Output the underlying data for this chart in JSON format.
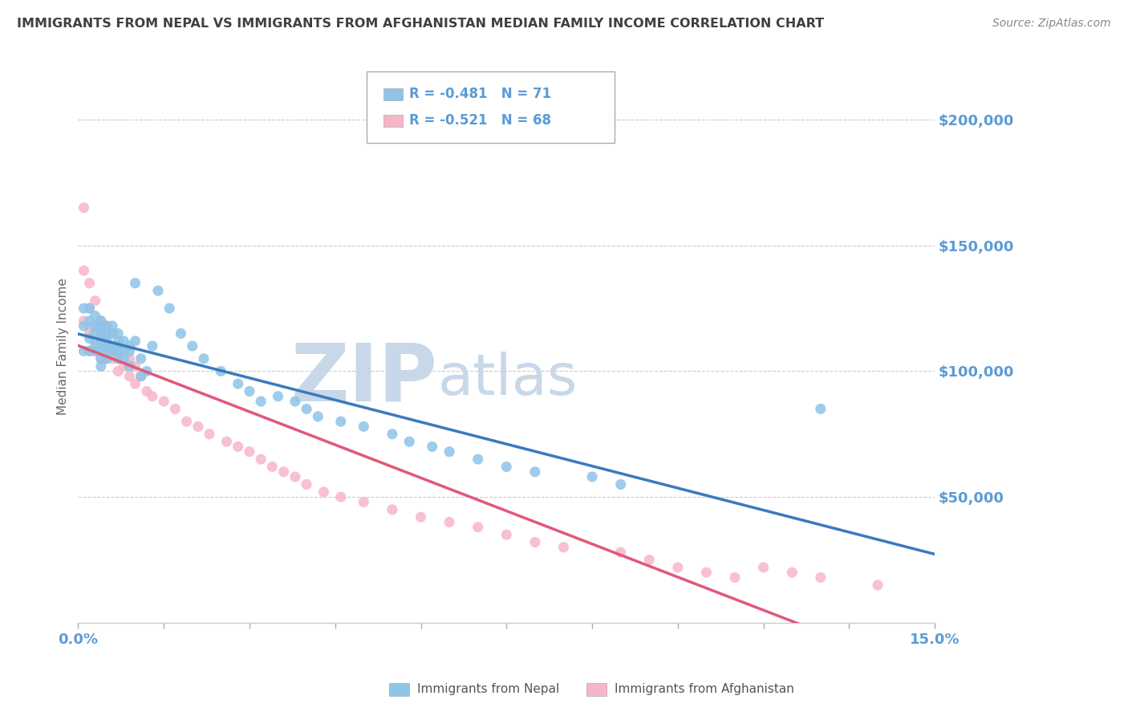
{
  "title": "IMMIGRANTS FROM NEPAL VS IMMIGRANTS FROM AFGHANISTAN MEDIAN FAMILY INCOME CORRELATION CHART",
  "source": "Source: ZipAtlas.com",
  "ylabel": "Median Family Income",
  "xlim": [
    0.0,
    0.15
  ],
  "ylim": [
    0,
    220000
  ],
  "yticks": [
    0,
    50000,
    100000,
    150000,
    200000
  ],
  "xticks": [
    0.0,
    0.015,
    0.03,
    0.045,
    0.06,
    0.075,
    0.09,
    0.105,
    0.12,
    0.135,
    0.15
  ],
  "nepal_color": "#8ec4e8",
  "afghanistan_color": "#f7b6c8",
  "nepal_line_color": "#3a7abf",
  "afghanistan_line_color": "#e0587a",
  "nepal_R": -0.481,
  "nepal_N": 71,
  "afghanistan_R": -0.521,
  "afghanistan_N": 68,
  "nepal_x": [
    0.001,
    0.001,
    0.001,
    0.002,
    0.002,
    0.002,
    0.002,
    0.003,
    0.003,
    0.003,
    0.003,
    0.003,
    0.004,
    0.004,
    0.004,
    0.004,
    0.004,
    0.004,
    0.004,
    0.005,
    0.005,
    0.005,
    0.005,
    0.005,
    0.005,
    0.006,
    0.006,
    0.006,
    0.006,
    0.007,
    0.007,
    0.007,
    0.007,
    0.007,
    0.008,
    0.008,
    0.008,
    0.009,
    0.009,
    0.009,
    0.01,
    0.01,
    0.011,
    0.011,
    0.012,
    0.013,
    0.014,
    0.016,
    0.018,
    0.02,
    0.022,
    0.025,
    0.028,
    0.03,
    0.032,
    0.035,
    0.038,
    0.04,
    0.042,
    0.046,
    0.05,
    0.055,
    0.058,
    0.062,
    0.065,
    0.07,
    0.075,
    0.08,
    0.09,
    0.095,
    0.13
  ],
  "nepal_y": [
    118000,
    108000,
    125000,
    120000,
    113000,
    125000,
    108000,
    115000,
    122000,
    110000,
    108000,
    118000,
    112000,
    118000,
    105000,
    120000,
    108000,
    115000,
    102000,
    118000,
    110000,
    105000,
    115000,
    108000,
    112000,
    118000,
    110000,
    108000,
    115000,
    112000,
    108000,
    115000,
    105000,
    110000,
    108000,
    112000,
    105000,
    110000,
    108000,
    102000,
    135000,
    112000,
    105000,
    98000,
    100000,
    110000,
    132000,
    125000,
    115000,
    110000,
    105000,
    100000,
    95000,
    92000,
    88000,
    90000,
    88000,
    85000,
    82000,
    80000,
    78000,
    75000,
    72000,
    70000,
    68000,
    65000,
    62000,
    60000,
    58000,
    55000,
    85000
  ],
  "afghanistan_x": [
    0.001,
    0.001,
    0.001,
    0.002,
    0.002,
    0.002,
    0.002,
    0.002,
    0.003,
    0.003,
    0.003,
    0.003,
    0.004,
    0.004,
    0.004,
    0.004,
    0.004,
    0.005,
    0.005,
    0.005,
    0.005,
    0.006,
    0.006,
    0.006,
    0.007,
    0.007,
    0.007,
    0.008,
    0.008,
    0.009,
    0.009,
    0.01,
    0.01,
    0.011,
    0.012,
    0.013,
    0.015,
    0.017,
    0.019,
    0.021,
    0.023,
    0.026,
    0.028,
    0.03,
    0.032,
    0.034,
    0.036,
    0.038,
    0.04,
    0.043,
    0.046,
    0.05,
    0.055,
    0.06,
    0.065,
    0.07,
    0.075,
    0.08,
    0.085,
    0.095,
    0.1,
    0.105,
    0.11,
    0.115,
    0.12,
    0.125,
    0.13,
    0.14
  ],
  "afghanistan_y": [
    165000,
    140000,
    120000,
    135000,
    118000,
    125000,
    115000,
    108000,
    128000,
    118000,
    112000,
    108000,
    120000,
    115000,
    108000,
    105000,
    112000,
    118000,
    112000,
    105000,
    110000,
    115000,
    108000,
    105000,
    110000,
    105000,
    100000,
    108000,
    102000,
    105000,
    98000,
    102000,
    95000,
    98000,
    92000,
    90000,
    88000,
    85000,
    80000,
    78000,
    75000,
    72000,
    70000,
    68000,
    65000,
    62000,
    60000,
    58000,
    55000,
    52000,
    50000,
    48000,
    45000,
    42000,
    40000,
    38000,
    35000,
    32000,
    30000,
    28000,
    25000,
    22000,
    20000,
    18000,
    22000,
    20000,
    18000,
    15000
  ],
  "watermark_zip": "ZIP",
  "watermark_atlas": "atlas",
  "watermark_color": "#c8d8e8",
  "background_color": "#ffffff",
  "grid_color": "#cccccc",
  "tick_color": "#5b9bd5",
  "title_color": "#404040"
}
